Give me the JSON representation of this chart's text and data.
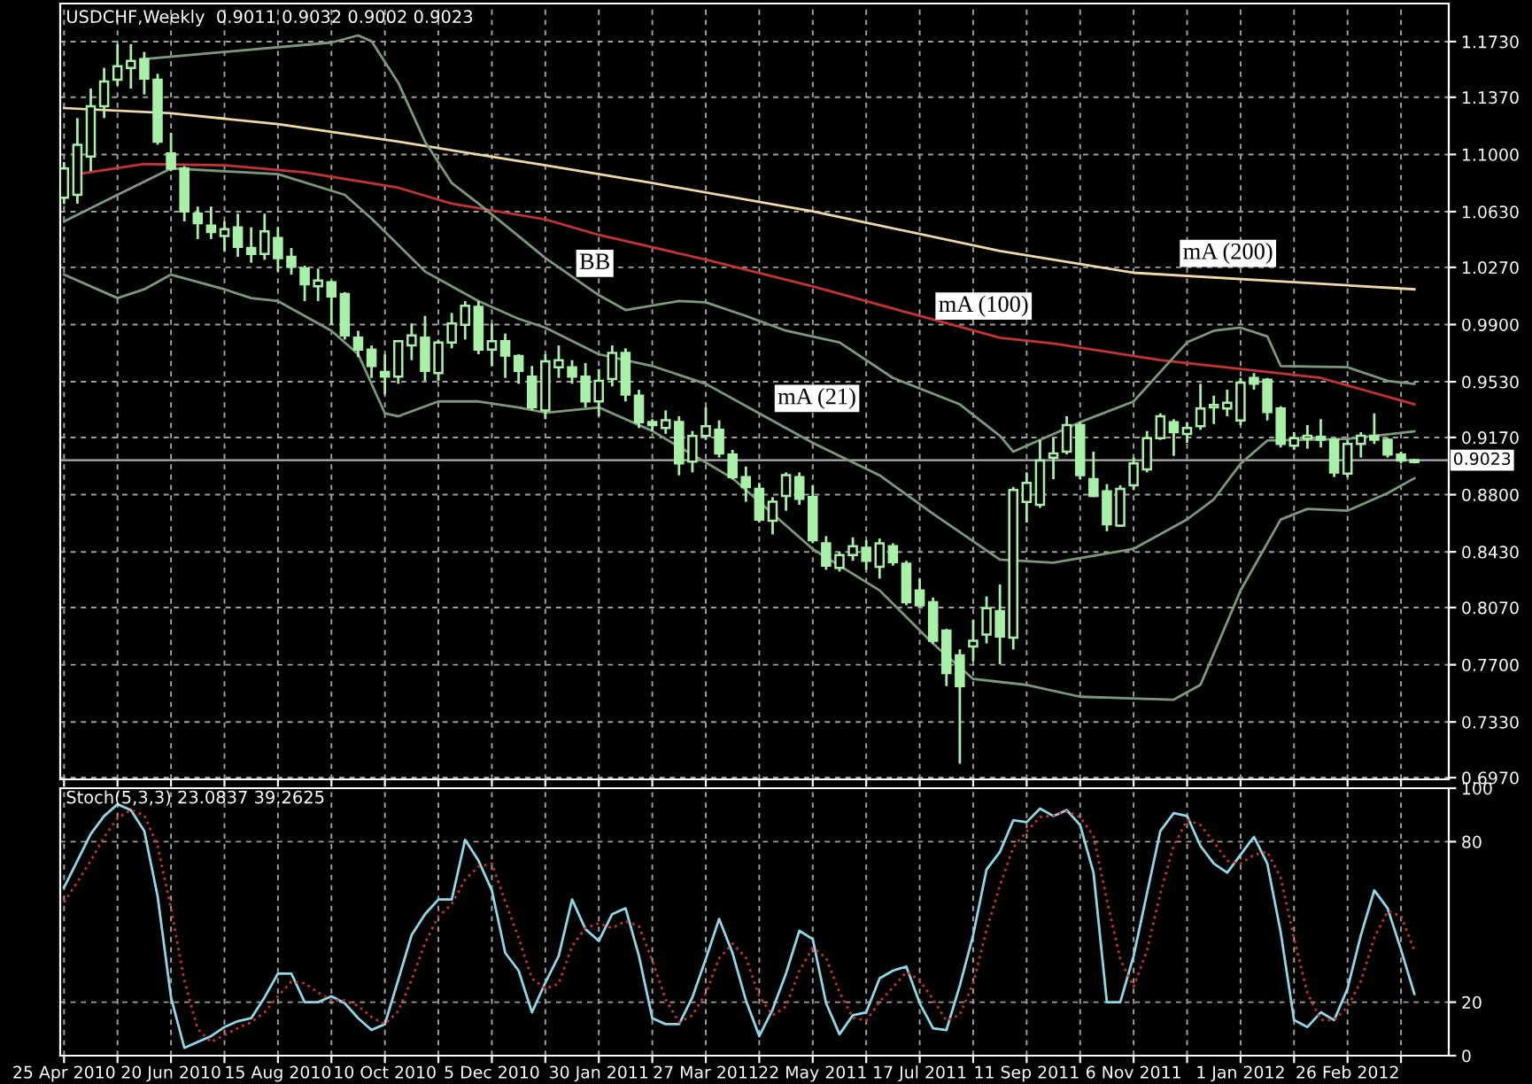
{
  "chart_data": [
    {
      "type": "candlestick",
      "title": "USDCHF,Weekly  0.9011 0.9032 0.9002 0.9023",
      "x": [
        "2010-04-25",
        "2010-05-02",
        "2010-05-09",
        "2010-05-16",
        "2010-05-23",
        "2010-05-30",
        "2010-06-06",
        "2010-06-13",
        "2010-06-20",
        "2010-06-27",
        "2010-07-04",
        "2010-07-11",
        "2010-07-18",
        "2010-07-25",
        "2010-08-01",
        "2010-08-08",
        "2010-08-15",
        "2010-08-22",
        "2010-08-29",
        "2010-09-05",
        "2010-09-12",
        "2010-09-19",
        "2010-09-26",
        "2010-10-03",
        "2010-10-10",
        "2010-10-17",
        "2010-10-24",
        "2010-10-31",
        "2010-11-07",
        "2010-11-14",
        "2010-11-21",
        "2010-11-28",
        "2010-12-05",
        "2010-12-12",
        "2010-12-19",
        "2010-12-26",
        "2011-01-02",
        "2011-01-09",
        "2011-01-16",
        "2011-01-23",
        "2011-01-30",
        "2011-02-06",
        "2011-02-13",
        "2011-02-20",
        "2011-02-27",
        "2011-03-06",
        "2011-03-13",
        "2011-03-20",
        "2011-03-27",
        "2011-04-03",
        "2011-04-10",
        "2011-04-17",
        "2011-04-24",
        "2011-05-01",
        "2011-05-08",
        "2011-05-15",
        "2011-05-22",
        "2011-05-29",
        "2011-06-05",
        "2011-06-12",
        "2011-06-19",
        "2011-06-26",
        "2011-07-03",
        "2011-07-10",
        "2011-07-17",
        "2011-07-24",
        "2011-07-31",
        "2011-08-07",
        "2011-08-14",
        "2011-08-21",
        "2011-08-28",
        "2011-09-04",
        "2011-09-11",
        "2011-09-18",
        "2011-09-25",
        "2011-10-02",
        "2011-10-09",
        "2011-10-16",
        "2011-10-23",
        "2011-10-30",
        "2011-11-06",
        "2011-11-13",
        "2011-11-20",
        "2011-11-27",
        "2011-12-04",
        "2011-12-11",
        "2011-12-18",
        "2011-12-25",
        "2012-01-01",
        "2012-01-08",
        "2012-01-15",
        "2012-01-22",
        "2012-01-29",
        "2012-02-05",
        "2012-02-12",
        "2012-02-19",
        "2012-02-26",
        "2012-03-04",
        "2012-03-11",
        "2012-03-18",
        "2012-03-25",
        "2012-04-01"
      ],
      "series": [
        {
          "type": "line",
          "color": "#f0d8a8",
          "x": [
            "2010-04-25",
            "2010-06-20",
            "2010-08-15",
            "2010-10-17",
            "2011-01-02",
            "2011-02-27",
            "2011-05-22",
            "2011-08-28",
            "2011-11-06",
            "2012-01-29",
            "2012-04-01"
          ],
          "values": [
            1.13,
            1.1266,
            1.1197,
            1.1083,
            1.093,
            1.0815,
            1.0632,
            1.0376,
            1.0235,
            1.0174,
            1.0128
          ]
        },
        {
          "type": "line",
          "color": "#c83232",
          "x": [
            "2010-05-02",
            "2010-06-06",
            "2010-07-18",
            "2010-08-29",
            "2010-10-17",
            "2010-11-14",
            "2011-01-02",
            "2011-01-30",
            "2011-03-27",
            "2011-05-22",
            "2011-07-17",
            "2011-08-28",
            "2011-09-25",
            "2011-11-20",
            "2012-02-12",
            "2012-04-01"
          ],
          "values": [
            1.0873,
            1.0938,
            1.093,
            1.0884,
            1.0785,
            1.0682,
            1.058,
            1.048,
            1.032,
            1.0147,
            0.9956,
            0.9815,
            0.9777,
            0.967,
            0.9555,
            0.9384
          ]
        },
        {
          "type": "line",
          "color": "#7a9a7a",
          "x": [
            "2010-06-06",
            "2010-09-12",
            "2010-09-26",
            "2010-10-03",
            "2010-10-17",
            "2010-10-31",
            "2010-11-14",
            "2010-11-28",
            "2010-12-19",
            "2011-01-02",
            "2011-01-30",
            "2011-02-13",
            "2011-03-13",
            "2011-03-27",
            "2011-04-17",
            "2011-05-08",
            "2011-06-05",
            "2011-07-03",
            "2011-08-07",
            "2011-08-28",
            "2011-09-04",
            "2011-10-09",
            "2011-11-06",
            "2011-12-04",
            "2011-12-18",
            "2012-01-01",
            "2012-01-15",
            "2012-01-22",
            "2012-02-26",
            "2012-03-18",
            "2012-04-01"
          ],
          "values": [
            1.1617,
            1.1724,
            1.177,
            1.1732,
            1.1464,
            1.1083,
            1.0815,
            1.0682,
            1.0472,
            1.033,
            1.009,
            0.9994,
            1.0052,
            1.0044,
            0.9956,
            0.986,
            0.9785,
            0.9555,
            0.9384,
            0.918,
            0.9078,
            0.9269,
            0.9403,
            0.9785,
            0.986,
            0.988,
            0.9823,
            0.9632,
            0.9624,
            0.9536,
            0.9517
          ]
        },
        {
          "type": "line",
          "color": "#7a9a7a",
          "x": [
            "2010-04-25",
            "2010-05-23",
            "2010-06-20",
            "2010-08-15",
            "2010-09-19",
            "2010-10-03",
            "2010-10-31",
            "2010-11-28",
            "2010-12-19",
            "2011-01-02",
            "2011-01-30",
            "2011-02-27",
            "2011-03-27",
            "2011-04-24",
            "2011-05-22",
            "2011-06-26",
            "2011-07-24",
            "2011-08-28",
            "2011-09-25",
            "2011-11-06",
            "2011-12-04",
            "2011-12-18",
            "2012-01-01",
            "2012-01-15",
            "2012-02-26",
            "2012-04-01"
          ],
          "values": [
            1.0567,
            1.0739,
            1.091,
            1.0873,
            1.0739,
            1.0586,
            1.0243,
            1.0052,
            0.9937,
            0.988,
            0.9708,
            0.9632,
            0.9517,
            0.9326,
            0.9135,
            0.8925,
            0.8677,
            0.838,
            0.836,
            0.845,
            0.864,
            0.877,
            0.9,
            0.915,
            0.916,
            0.921
          ]
        },
        {
          "type": "line",
          "color": "#7a9a7a",
          "x": [
            "2010-04-25",
            "2010-05-23",
            "2010-06-06",
            "2010-06-20",
            "2010-07-18",
            "2010-08-01",
            "2010-08-15",
            "2010-09-12",
            "2010-09-26",
            "2010-10-10",
            "2010-10-17",
            "2010-11-07",
            "2010-11-28",
            "2010-12-19",
            "2011-01-02",
            "2011-01-30",
            "2011-02-27",
            "2011-04-10",
            "2011-05-22",
            "2011-06-26",
            "2011-07-24",
            "2011-08-14",
            "2011-08-28",
            "2011-09-11",
            "2011-10-09",
            "2011-11-27",
            "2011-12-11",
            "2012-01-01",
            "2012-01-22",
            "2012-02-05",
            "2012-02-26",
            "2012-03-18",
            "2012-04-01"
          ],
          "values": [
            1.0223,
            1.0071,
            1.0128,
            1.0223,
            1.0128,
            1.0071,
            1.0052,
            0.986,
            0.9708,
            0.9326,
            0.9307,
            0.9403,
            0.9403,
            0.9364,
            0.933,
            0.9364,
            0.9212,
            0.8906,
            0.8448,
            0.8181,
            0.7837,
            0.7608,
            0.7589,
            0.757,
            0.7493,
            0.7474,
            0.757,
            0.818,
            0.8639,
            0.8708,
            0.8696,
            0.881,
            0.8906
          ]
        },
        {
          "type": "candlestick",
          "color": "#a8f0a8",
          "ohlc": [
            [
              1.072,
              1.095,
              1.068,
              1.091
            ],
            [
              1.0739,
              1.1235,
              1.0682,
              1.1063
            ],
            [
              1.0987,
              1.1426,
              1.0892,
              1.1312
            ],
            [
              1.1312,
              1.156,
              1.1235,
              1.1472
            ],
            [
              1.1484,
              1.1713,
              1.1445,
              1.1571
            ],
            [
              1.156,
              1.1713,
              1.1426,
              1.1605
            ],
            [
              1.1617,
              1.1663,
              1.1388,
              1.1491
            ],
            [
              1.1484,
              1.1522,
              1.1063,
              1.1083
            ],
            [
              1.1006,
              1.114,
              1.0892,
              1.091
            ],
            [
              1.091,
              1.0925,
              1.0567,
              1.0632
            ],
            [
              1.0617,
              1.0663,
              1.0453,
              1.0556
            ],
            [
              1.054,
              1.0663,
              1.0453,
              1.0498
            ],
            [
              1.0472,
              1.0567,
              1.0376,
              1.0517
            ],
            [
              1.0529,
              1.0617,
              1.0338,
              1.0403
            ],
            [
              1.0395,
              1.0529,
              1.03,
              1.0357
            ],
            [
              1.0357,
              1.0617,
              1.0319,
              1.0502
            ],
            [
              1.046,
              1.0529,
              1.0243,
              1.033
            ],
            [
              1.0338,
              1.0395,
              1.0223,
              1.0273
            ],
            [
              1.0262,
              1.0281,
              1.0052,
              1.016
            ],
            [
              1.0147,
              1.0262,
              1.0052,
              1.0185
            ],
            [
              1.0174,
              1.0185,
              0.99,
              1.0082
            ],
            [
              1.0097,
              1.011,
              0.9803,
              0.983
            ],
            [
              0.9815,
              0.986,
              0.9689,
              0.9738
            ],
            [
              0.9738,
              0.9765,
              0.9555,
              0.9632
            ],
            [
              0.9593,
              0.9708,
              0.9448,
              0.9563
            ],
            [
              0.9563,
              0.98,
              0.9517,
              0.9792
            ],
            [
              0.9765,
              0.9907,
              0.967,
              0.983
            ],
            [
              0.9815,
              0.9956,
              0.9536,
              0.9601
            ],
            [
              0.9586,
              0.9803,
              0.9536,
              0.9784
            ],
            [
              0.9784,
              0.9975,
              0.9746,
              0.9907
            ],
            [
              0.9899,
              1.0052,
              0.9803,
              1.0021
            ],
            [
              1.0014,
              1.0052,
              0.9708,
              0.9738
            ],
            [
              0.9738,
              0.9907,
              0.963,
              0.9792
            ],
            [
              0.9792,
              0.9842,
              0.9555,
              0.97
            ],
            [
              0.9697,
              0.9708,
              0.9517,
              0.9601
            ],
            [
              0.9563,
              0.9632,
              0.9345,
              0.9364
            ],
            [
              0.9345,
              0.9708,
              0.9288,
              0.9662
            ],
            [
              0.9624,
              0.9765,
              0.9555,
              0.967
            ],
            [
              0.9624,
              0.967,
              0.9517,
              0.9563
            ],
            [
              0.9563,
              0.9651,
              0.9364,
              0.9403
            ],
            [
              0.9403,
              0.9612,
              0.9307,
              0.9536
            ],
            [
              0.9548,
              0.9765,
              0.95,
              0.9716
            ],
            [
              0.9716,
              0.9746,
              0.9403,
              0.9448
            ],
            [
              0.944,
              0.9479,
              0.9231,
              0.9269
            ],
            [
              0.927,
              0.9288,
              0.9212,
              0.925
            ],
            [
              0.9231,
              0.9345,
              0.9193,
              0.9281
            ],
            [
              0.927,
              0.9307,
              0.8925,
              0.9002
            ],
            [
              0.9013,
              0.9212,
              0.8944,
              0.918
            ],
            [
              0.918,
              0.9364,
              0.9154,
              0.9242
            ],
            [
              0.922,
              0.9281,
              0.904,
              0.9067
            ],
            [
              0.906,
              0.909,
              0.8899,
              0.8914
            ],
            [
              0.8914,
              0.8982,
              0.8754,
              0.8849
            ],
            [
              0.8838,
              0.8876,
              0.862,
              0.8639
            ],
            [
              0.8631,
              0.8784,
              0.8543,
              0.8754
            ],
            [
              0.8792,
              0.8944,
              0.8696,
              0.8926
            ],
            [
              0.8914,
              0.8944,
              0.8734,
              0.8773
            ],
            [
              0.8784,
              0.8861,
              0.8486,
              0.8505
            ],
            [
              0.8486,
              0.8532,
              0.8314,
              0.8341
            ],
            [
              0.8326,
              0.8429,
              0.8303,
              0.841
            ],
            [
              0.841,
              0.8524,
              0.8372,
              0.8467
            ],
            [
              0.8456,
              0.8505,
              0.8314,
              0.8372
            ],
            [
              0.8334,
              0.8517,
              0.8257,
              0.8486
            ],
            [
              0.8467,
              0.8486,
              0.8341,
              0.8364
            ],
            [
              0.8353,
              0.8372,
              0.8085,
              0.8104
            ],
            [
              0.8181,
              0.8257,
              0.8074,
              0.8085
            ],
            [
              0.8104,
              0.8135,
              0.7837,
              0.7856
            ],
            [
              0.7921,
              0.7932,
              0.7562,
              0.7646
            ],
            [
              0.7761,
              0.78,
              0.706,
              0.7562
            ],
            [
              0.7818,
              0.799,
              0.7723,
              0.7856
            ],
            [
              0.7895,
              0.8142,
              0.7838,
              0.8066
            ],
            [
              0.8047,
              0.822,
              0.7703,
              0.7883
            ],
            [
              0.7875,
              0.885,
              0.7799,
              0.883
            ],
            [
              0.8753,
              0.8944,
              0.862,
              0.8876
            ],
            [
              0.8734,
              0.9154,
              0.8715,
              0.9021
            ],
            [
              0.904,
              0.9166,
              0.89,
              0.9067
            ],
            [
              0.9078,
              0.9307,
              0.906,
              0.925
            ],
            [
              0.925,
              0.927,
              0.89,
              0.8926
            ],
            [
              0.89,
              0.9078,
              0.8784,
              0.8792
            ],
            [
              0.8822,
              0.8868,
              0.8563,
              0.8608
            ],
            [
              0.86,
              0.8861,
              0.8593,
              0.8838
            ],
            [
              0.886,
              0.904,
              0.883,
              0.9002
            ],
            [
              0.8963,
              0.9212,
              0.8944,
              0.9166
            ],
            [
              0.9166,
              0.9326,
              0.9154,
              0.9307
            ],
            [
              0.9269,
              0.9288,
              0.9051,
              0.9204
            ],
            [
              0.9192,
              0.9269,
              0.9135,
              0.9231
            ],
            [
              0.9242,
              0.9517,
              0.922,
              0.9357
            ],
            [
              0.9364,
              0.944,
              0.9257,
              0.938
            ],
            [
              0.9357,
              0.948,
              0.9307,
              0.9395
            ],
            [
              0.928,
              0.9555,
              0.925,
              0.9525
            ],
            [
              0.9555,
              0.9586,
              0.9479,
              0.9517
            ],
            [
              0.9544,
              0.9555,
              0.928,
              0.9334
            ],
            [
              0.9357,
              0.9372,
              0.9105,
              0.9128
            ],
            [
              0.9116,
              0.9204,
              0.909,
              0.9166
            ],
            [
              0.9162,
              0.925,
              0.9097,
              0.9181
            ],
            [
              0.9174,
              0.9288,
              0.9105,
              0.9155
            ],
            [
              0.9155,
              0.9166,
              0.8914,
              0.8944
            ],
            [
              0.8937,
              0.9155,
              0.8914,
              0.9128
            ],
            [
              0.9128,
              0.9204,
              0.904,
              0.9181
            ],
            [
              0.9181,
              0.9326,
              0.9128,
              0.9155
            ],
            [
              0.9155,
              0.9166,
              0.904,
              0.906
            ],
            [
              0.9059,
              0.9078,
              0.9002,
              0.9021
            ],
            [
              0.9011,
              0.9032,
              0.9002,
              0.9023
            ]
          ]
        }
      ],
      "annotations": [
        "BB",
        "mA (21)",
        "mA (100)",
        "mA (200)"
      ],
      "ref_lines": [
        {
          "axis": "y",
          "value": 0.9023,
          "label": "0.9023",
          "color": "#b0b0b0"
        }
      ],
      "xlim": [
        "2010-04-23",
        "2012-04-19"
      ],
      "ylim": [
        0.6959,
        1.1976
      ],
      "xticks": [
        {
          "value": "2010-04-25",
          "label": null
        },
        {
          "value": "2010-05-23",
          "label": null
        },
        {
          "value": "2010-06-20",
          "label": null
        },
        {
          "value": "2010-07-18",
          "label": null
        },
        {
          "value": "2010-08-15",
          "label": null
        },
        {
          "value": "2010-09-12",
          "label": null
        },
        {
          "value": "2010-10-10",
          "label": null
        },
        {
          "value": "2010-11-07",
          "label": null
        },
        {
          "value": "2010-12-05",
          "label": null
        },
        {
          "value": "2011-01-02",
          "label": null
        },
        {
          "value": "2011-01-30",
          "label": null
        },
        {
          "value": "2011-02-27",
          "label": null
        },
        {
          "value": "2011-03-27",
          "label": null
        },
        {
          "value": "2011-04-24",
          "label": null
        },
        {
          "value": "2011-05-22",
          "label": null
        },
        {
          "value": "2011-06-19",
          "label": null
        },
        {
          "value": "2011-07-17",
          "label": null
        },
        {
          "value": "2011-08-14",
          "label": null
        },
        {
          "value": "2011-09-11",
          "label": null
        },
        {
          "value": "2011-10-09",
          "label": null
        },
        {
          "value": "2011-11-06",
          "label": null
        },
        {
          "value": "2011-12-04",
          "label": null
        },
        {
          "value": "2012-01-01",
          "label": null
        },
        {
          "value": "2012-01-29",
          "label": null
        },
        {
          "value": "2012-02-26",
          "label": null
        },
        {
          "value": "2012-03-25",
          "label": null
        }
      ],
      "yticks": [
        {
          "value": 0.697,
          "label": "0.6970"
        },
        {
          "value": 0.733,
          "label": "0.7330"
        },
        {
          "value": 0.77,
          "label": "0.7700"
        },
        {
          "value": 0.807,
          "label": "0.8070"
        },
        {
          "value": 0.843,
          "label": "0.8430"
        },
        {
          "value": 0.88,
          "label": "0.8800"
        },
        {
          "value": 0.917,
          "label": "0.9170"
        },
        {
          "value": 0.953,
          "label": "0.9530"
        },
        {
          "value": 0.99,
          "label": "0.9900"
        },
        {
          "value": 1.027,
          "label": "1.0270"
        },
        {
          "value": 1.063,
          "label": "1.0630"
        },
        {
          "value": 1.1,
          "label": "1.1000"
        },
        {
          "value": 1.137,
          "label": "1.1370"
        },
        {
          "value": 1.173,
          "label": "1.1730"
        }
      ],
      "grid": true,
      "tick_labels": "y"
    },
    {
      "type": "line",
      "title": "Stoch(5,3,3) 23.0837 39.2625",
      "x": [
        "2010-04-25",
        "2010-05-02",
        "2010-05-09",
        "2010-05-16",
        "2010-05-23",
        "2010-05-30",
        "2010-06-06",
        "2010-06-13",
        "2010-06-20",
        "2010-06-27",
        "2010-07-04",
        "2010-07-11",
        "2010-07-18",
        "2010-07-25",
        "2010-08-01",
        "2010-08-08",
        "2010-08-15",
        "2010-08-22",
        "2010-08-29",
        "2010-09-05",
        "2010-09-12",
        "2010-09-19",
        "2010-09-26",
        "2010-10-03",
        "2010-10-10",
        "2010-10-17",
        "2010-10-24",
        "2010-10-31",
        "2010-11-07",
        "2010-11-14",
        "2010-11-21",
        "2010-11-28",
        "2010-12-05",
        "2010-12-12",
        "2010-12-19",
        "2010-12-26",
        "2011-01-02",
        "2011-01-09",
        "2011-01-16",
        "2011-01-23",
        "2011-01-30",
        "2011-02-06",
        "2011-02-13",
        "2011-02-20",
        "2011-02-27",
        "2011-03-06",
        "2011-03-13",
        "2011-03-20",
        "2011-03-27",
        "2011-04-03",
        "2011-04-10",
        "2011-04-17",
        "2011-04-24",
        "2011-05-01",
        "2011-05-08",
        "2011-05-15",
        "2011-05-22",
        "2011-05-29",
        "2011-06-05",
        "2011-06-12",
        "2011-06-19",
        "2011-06-26",
        "2011-07-03",
        "2011-07-10",
        "2011-07-17",
        "2011-07-24",
        "2011-07-31",
        "2011-08-07",
        "2011-08-14",
        "2011-08-21",
        "2011-08-28",
        "2011-09-04",
        "2011-09-11",
        "2011-09-18",
        "2011-09-25",
        "2011-10-02",
        "2011-10-09",
        "2011-10-16",
        "2011-10-23",
        "2011-10-30",
        "2011-11-06",
        "2011-11-13",
        "2011-11-20",
        "2011-11-27",
        "2011-12-04",
        "2011-12-11",
        "2011-12-18",
        "2011-12-25",
        "2012-01-01",
        "2012-01-08",
        "2012-01-15",
        "2012-01-22",
        "2012-01-29",
        "2012-02-05",
        "2012-02-12",
        "2012-02-19",
        "2012-02-26",
        "2012-03-04",
        "2012-03-11",
        "2012-03-18",
        "2012-03-25",
        "2012-04-01"
      ],
      "series": [
        {
          "color": "#8fd8e8",
          "values": [
            62.9,
            72.9,
            82.9,
            89.6,
            94,
            91.8,
            84,
            59.6,
            21.8,
            2.9,
            5.1,
            7.3,
            10.7,
            12.9,
            14,
            21.8,
            30.7,
            30.7,
            20,
            20,
            22.2,
            19.6,
            14,
            9.6,
            11.8,
            28.4,
            45.1,
            52.9,
            58.4,
            58.4,
            80.7,
            72.9,
            61.8,
            38.4,
            31.8,
            16.2,
            27.3,
            37.3,
            58.4,
            47.3,
            42.9,
            52.9,
            55.1,
            37.3,
            14,
            11.8,
            11.8,
            21.8,
            36.2,
            51.1,
            38.4,
            20.7,
            7.3,
            17.3,
            30.7,
            46.7,
            43.6,
            19.6,
            8,
            15.1,
            16.2,
            28.9,
            31.8,
            33.3,
            19.6,
            10.2,
            9.6,
            26.2,
            45.1,
            69.6,
            76.2,
            88,
            87.3,
            92.4,
            89.6,
            91.8,
            86.2,
            68.4,
            20,
            20,
            37.3,
            60.7,
            84,
            90.7,
            89.6,
            78.4,
            71.8,
            68.4,
            75.1,
            81.8,
            71.8,
            46.2,
            13.3,
            10.7,
            16.2,
            13.3,
            25.1,
            45.1,
            61.8,
            55.1,
            39.6,
            23.1
          ]
        },
        {
          "color": "#c83232",
          "line_style": "dotted",
          "values": [
            57.3,
            65,
            72.9,
            81.8,
            88.8,
            91.8,
            89.9,
            78.5,
            55.1,
            28.1,
            9.9,
            5.1,
            7.7,
            10.3,
            12.5,
            16.2,
            22.2,
            27.7,
            27.1,
            23.6,
            20.7,
            20.6,
            18.6,
            14.4,
            11.8,
            16.6,
            28.4,
            42.1,
            52.1,
            56.6,
            65.8,
            70.7,
            71.8,
            57.7,
            44,
            28.8,
            25.1,
            26.9,
            41,
            47.7,
            49.5,
            47.7,
            50.3,
            48.4,
            35.5,
            21,
            12.5,
            15.1,
            23.3,
            36.4,
            41.9,
            36.7,
            22.1,
            15.1,
            18.4,
            31.7,
            40.3,
            36.6,
            23.7,
            14.2,
            13.1,
            20.1,
            25.6,
            31.3,
            28.2,
            21,
            13.1,
            15.3,
            27,
            47,
            63.6,
            77.9,
            83.8,
            89.2,
            89.8,
            91.3,
            89.2,
            82.1,
            58.2,
            36.1,
            25.8,
            39.3,
            60.7,
            78.5,
            88.1,
            86.2,
            79.9,
            72.9,
            71.8,
            75.1,
            76.2,
            66.6,
            43.8,
            23.4,
            13.4,
            13.4,
            18.2,
            27.8,
            44,
            54,
            52.2,
            39.3
          ]
        }
      ],
      "xlim": [
        "2010-04-23",
        "2012-04-19"
      ],
      "ylim": [
        0,
        100
      ],
      "xticks": [
        {
          "value": "2010-04-25",
          "label": "25 Apr 2010"
        },
        {
          "value": "2010-05-23",
          "label": null
        },
        {
          "value": "2010-06-20",
          "label": "20 Jun 2010"
        },
        {
          "value": "2010-07-18",
          "label": null
        },
        {
          "value": "2010-08-15",
          "label": "15 Aug 2010"
        },
        {
          "value": "2010-09-12",
          "label": null
        },
        {
          "value": "2010-10-10",
          "label": "10 Oct 2010"
        },
        {
          "value": "2010-11-07",
          "label": null
        },
        {
          "value": "2010-12-05",
          "label": "5 Dec 2010"
        },
        {
          "value": "2011-01-02",
          "label": null
        },
        {
          "value": "2011-01-30",
          "label": "30 Jan 2011"
        },
        {
          "value": "2011-02-27",
          "label": null
        },
        {
          "value": "2011-03-27",
          "label": "27 Mar 2011"
        },
        {
          "value": "2011-04-24",
          "label": null
        },
        {
          "value": "2011-05-22",
          "label": "22 May 2011"
        },
        {
          "value": "2011-06-19",
          "label": null
        },
        {
          "value": "2011-07-17",
          "label": "17 Jul 2011"
        },
        {
          "value": "2011-08-14",
          "label": null
        },
        {
          "value": "2011-09-11",
          "label": "11 Sep 2011"
        },
        {
          "value": "2011-10-09",
          "label": null
        },
        {
          "value": "2011-11-06",
          "label": "6 Nov 2011"
        },
        {
          "value": "2011-12-04",
          "label": null
        },
        {
          "value": "2012-01-01",
          "label": "1 Jan 2012"
        },
        {
          "value": "2012-01-29",
          "label": null
        },
        {
          "value": "2012-02-26",
          "label": "26 Feb 2012"
        },
        {
          "value": "2012-03-25",
          "label": null
        }
      ],
      "yticks": [
        0,
        20,
        80,
        100
      ],
      "grid": true
    }
  ]
}
